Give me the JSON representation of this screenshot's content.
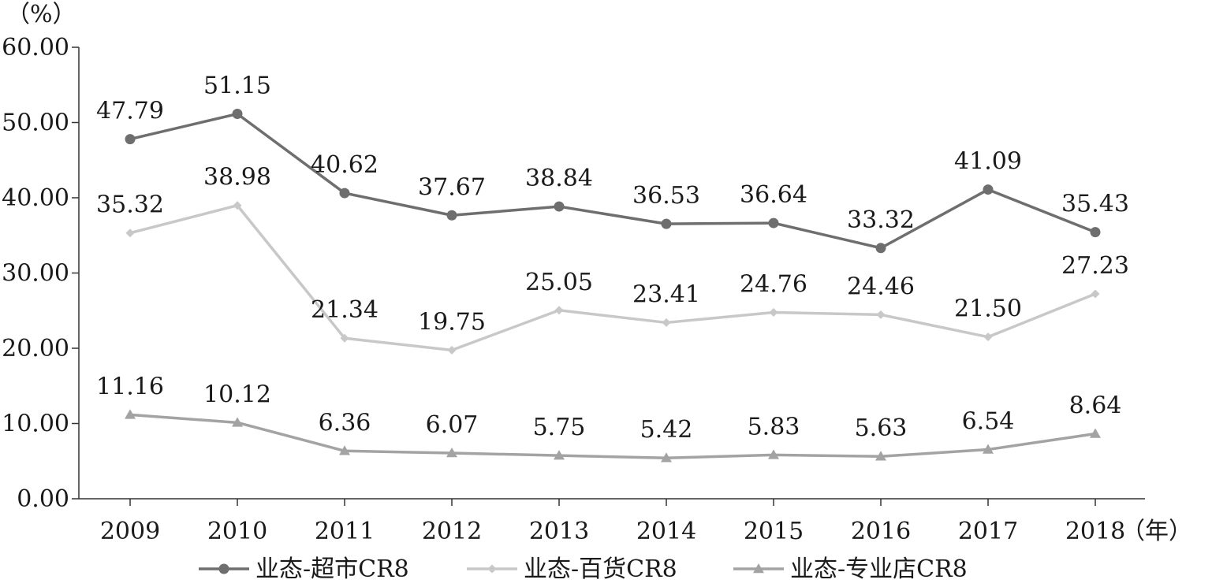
{
  "chart_data": {
    "type": "line",
    "title": "",
    "ylabel": "（%）",
    "xlabel": "（年）",
    "ylim": [
      0,
      60
    ],
    "yticks": [
      "0.00",
      "10.00",
      "20.00",
      "30.00",
      "40.00",
      "50.00",
      "60.00"
    ],
    "categories": [
      "2009",
      "2010",
      "2011",
      "2012",
      "2013",
      "2014",
      "2015",
      "2016",
      "2017",
      "2018"
    ],
    "legend_position": "bottom",
    "series": [
      {
        "name": "业态-超市CR8",
        "marker": "circle",
        "color": "#6e6e6e",
        "values": [
          47.79,
          51.15,
          40.62,
          37.67,
          38.84,
          36.53,
          36.64,
          33.32,
          41.09,
          35.43
        ],
        "labels": [
          "47.79",
          "51.15",
          "40.62",
          "37.67",
          "38.84",
          "36.53",
          "36.64",
          "33.32",
          "41.09",
          "35.43"
        ]
      },
      {
        "name": "业态-百货CR8",
        "marker": "diamond",
        "color": "#c8c8c8",
        "values": [
          35.32,
          38.98,
          21.34,
          19.75,
          25.05,
          23.41,
          24.76,
          24.46,
          21.5,
          27.23
        ],
        "labels": [
          "35.32",
          "38.98",
          "21.34",
          "19.75",
          "25.05",
          "23.41",
          "24.76",
          "24.46",
          "21.50",
          "27.23"
        ]
      },
      {
        "name": "业态-专业店CR8",
        "marker": "triangle",
        "color": "#a3a3a3",
        "values": [
          11.16,
          10.12,
          6.36,
          6.07,
          5.75,
          5.42,
          5.83,
          5.63,
          6.54,
          8.64
        ],
        "labels": [
          "11.16",
          "10.12",
          "6.36",
          "6.07",
          "5.75",
          "5.42",
          "5.83",
          "5.63",
          "6.54",
          "8.64"
        ]
      }
    ]
  }
}
